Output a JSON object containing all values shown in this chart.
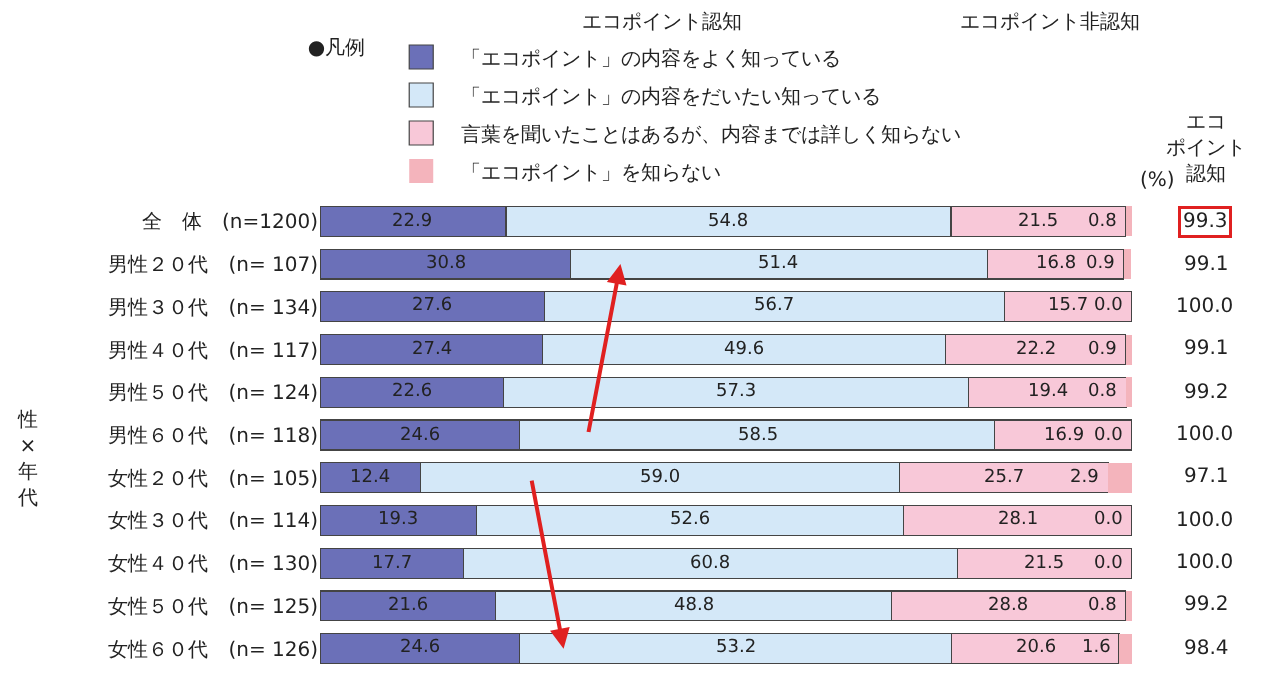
{
  "chart_data": {
    "type": "bar",
    "orientation": "horizontal",
    "stacked": true,
    "categories": [
      "全　体　(n=1200)",
      "男性２０代　(n= 107)",
      "男性３０代　(n= 134)",
      "男性４０代　(n= 117)",
      "男性５０代　(n= 124)",
      "男性６０代　(n= 118)",
      "女性２０代　(n= 105)",
      "女性３０代　(n= 114)",
      "女性４０代　(n= 130)",
      "女性５０代　(n= 125)",
      "女性６０代　(n= 126)"
    ],
    "series": [
      {
        "name": "「エコポイント」の内容をよく知っている",
        "color": "#6b70b8",
        "values": [
          22.9,
          30.8,
          27.6,
          27.4,
          22.6,
          24.6,
          12.4,
          19.3,
          17.7,
          21.6,
          24.6
        ],
        "value_labels": [
          "22.9",
          "30.8",
          "27.6",
          "27.4",
          "22.6",
          "24.6",
          "12.4",
          "19.3",
          "17.7",
          "21.6",
          "24.6"
        ]
      },
      {
        "name": "「エコポイント」の内容をだいたい知っている",
        "color": "#d4e8f8",
        "values": [
          54.8,
          51.4,
          56.7,
          49.6,
          57.3,
          58.5,
          59.0,
          52.6,
          60.8,
          48.8,
          53.2
        ],
        "value_labels": [
          "54.8",
          "51.4",
          "56.7",
          "49.6",
          "57.3",
          "58.5",
          "59.0",
          "52.6",
          "60.8",
          "48.8",
          "53.2"
        ]
      },
      {
        "name": "言葉を聞いたことはあるが、内容までは詳しく知らない",
        "color": "#f8c8d8",
        "values": [
          21.5,
          16.8,
          15.7,
          22.2,
          19.4,
          16.9,
          25.7,
          28.1,
          21.5,
          28.8,
          20.6
        ],
        "value_labels": [
          "21.5",
          "16.8",
          "15.7",
          "22.2",
          "19.4",
          "16.9",
          "25.7",
          "28.1",
          "21.5",
          "28.8",
          "20.6"
        ]
      },
      {
        "name": "「エコポイント」を知らない",
        "color": "#f4b4bc",
        "values": [
          0.8,
          0.9,
          0.0,
          0.9,
          0.8,
          0.0,
          2.9,
          0.0,
          0.0,
          0.8,
          1.6
        ],
        "value_labels": [
          "0.8",
          "0.9",
          "0.0",
          "0.9",
          "0.8",
          "0.0",
          "2.9",
          "0.0",
          "0.0",
          "0.8",
          "1.6"
        ]
      }
    ],
    "xlim": [
      0,
      100
    ],
    "tick_labels": "y",
    "legend": "top",
    "legend_title": "●凡例",
    "annotations": [
      "エコポイント認知",
      "エコポイント非認知",
      "(%)",
      "エコポイント認知",
      "性×年代",
      "99.3",
      "99.1",
      "100.0",
      "99.1",
      "99.2",
      "100.0",
      "97.1",
      "100.0",
      "100.0",
      "99.2",
      "98.4"
    ]
  }
}
